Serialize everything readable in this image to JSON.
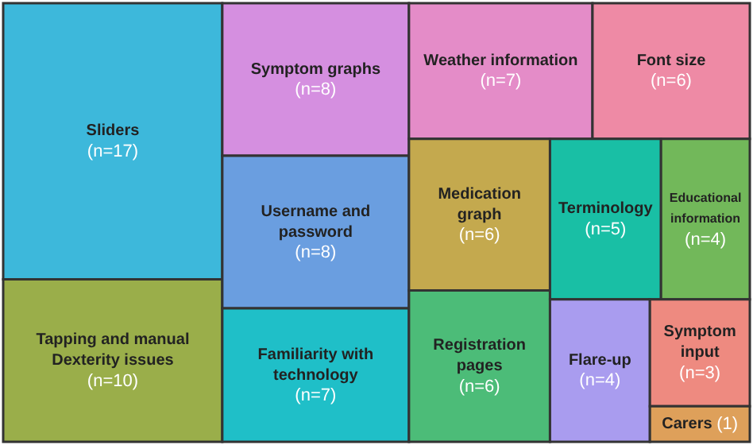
{
  "chart_data": {
    "type": "other",
    "categories": [
      "Sliders",
      "Tapping and manual Dexterity issues",
      "Symptom graphs",
      "Username and password",
      "Familiarity with technology",
      "Weather information",
      "Font size",
      "Medication graph",
      "Registration pages",
      "Terminology",
      "Educational information",
      "Flare-up",
      "Symptom input",
      "Carers"
    ],
    "values": [
      17,
      10,
      8,
      8,
      7,
      7,
      6,
      6,
      6,
      5,
      4,
      4,
      3,
      1
    ],
    "value_labels": [
      "(n=17)",
      "(n=10)",
      "(n=8)",
      "(n=8)",
      "(n=7)",
      "(n=7)",
      "(n=6)",
      "(n=6)",
      "(n=6)",
      "(n=5)",
      "(n=4)",
      "(n=4)",
      "(n=3)",
      "(1)"
    ],
    "colors": [
      "#3db8db",
      "#9aae4a",
      "#d58fe0",
      "#6a9ee0",
      "#1fbfc8",
      "#e48cc8",
      "#ee8aa5",
      "#c4a94e",
      "#4cbc78",
      "#19bfa5",
      "#72b85a",
      "#a99cef",
      "#ee8a80",
      "#dea05a"
    ]
  }
}
